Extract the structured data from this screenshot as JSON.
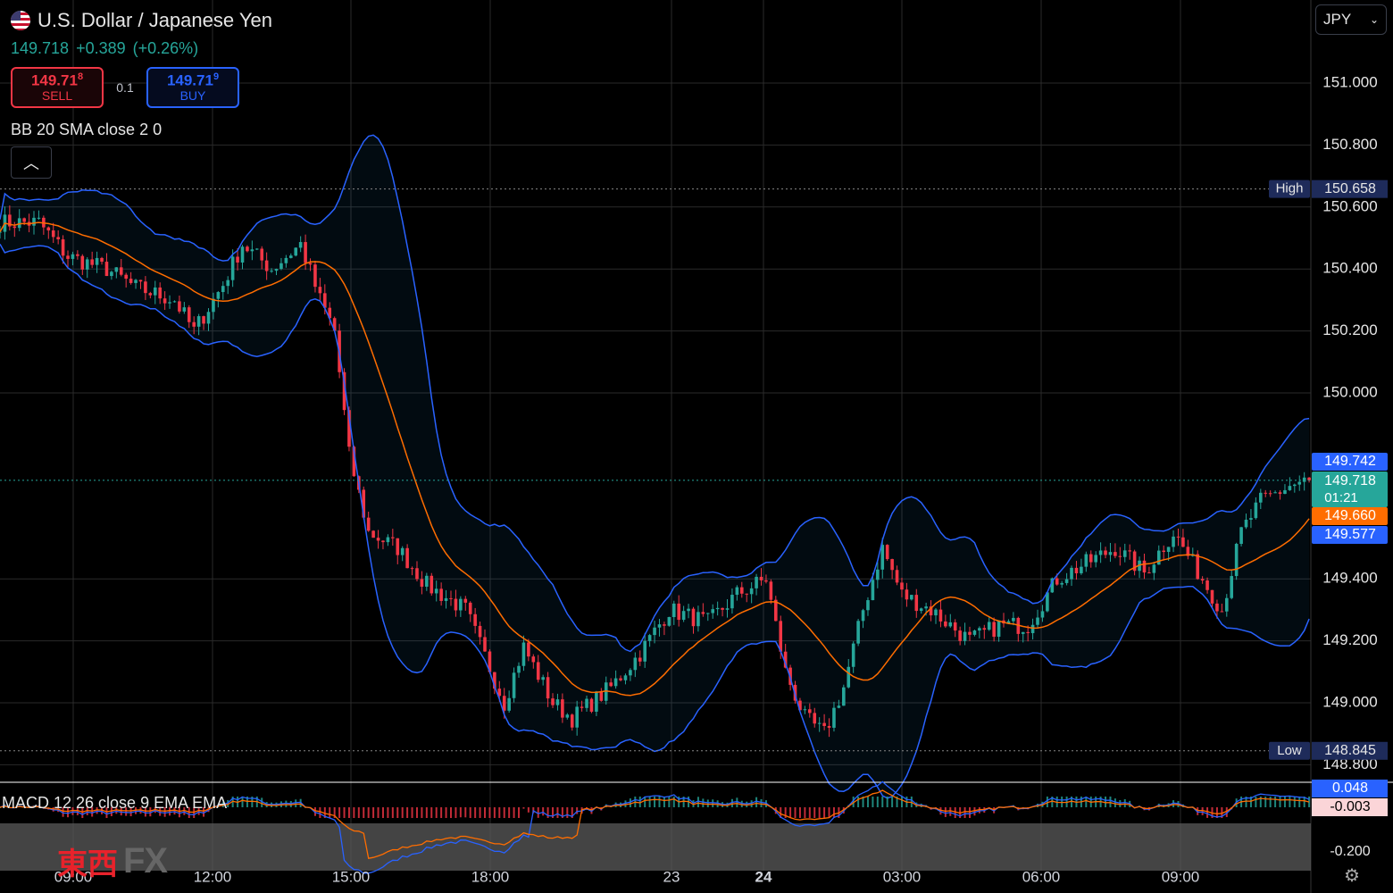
{
  "header": {
    "title": "U.S. Dollar / Japanese Yen",
    "last": "149.718",
    "change": "+0.389",
    "change_pct": "(+0.26%)",
    "sell": {
      "price_main": "149.71",
      "price_sup": "8",
      "label": "SELL"
    },
    "buy": {
      "price_main": "149.71",
      "price_sup": "9",
      "label": "BUY"
    },
    "spread": "0.1",
    "indicator": "BB 20 SMA close 2 0",
    "collapse_icon": "chevron-up-icon"
  },
  "currency_select": {
    "value": "JPY",
    "icon": "chevron-down-icon"
  },
  "macd_label": "MACD 12 26 close 9 EMA EMA",
  "logo": {
    "kanji": "東西",
    "fx": "FX"
  },
  "settings_icon": "gear-icon",
  "colors": {
    "up": "#26a69a",
    "down": "#f23645",
    "bb_band": "#2962ff",
    "bb_basis": "#ff6d00",
    "high_tag": "#1e2b5a"
  },
  "chart_data": {
    "type": "candlestick",
    "symbol": "USD/JPY",
    "y_ticks": [
      "151.000",
      "150.800",
      "150.600",
      "150.400",
      "150.200",
      "150.000",
      "149.400",
      "149.200",
      "149.000",
      "148.800"
    ],
    "x_ticks": [
      "09:00",
      "12:00",
      "15:00",
      "18:00",
      "23",
      "24",
      "03:00",
      "06:00",
      "09:00"
    ],
    "high": {
      "label": "High",
      "value": "150.658"
    },
    "low": {
      "label": "Low",
      "value": "148.845"
    },
    "price_tags": [
      {
        "value": "149.742",
        "kind": "bb-upper"
      },
      {
        "value": "149.718",
        "kind": "last",
        "countdown": "01:21"
      },
      {
        "value": "149.660",
        "kind": "bb-basis"
      },
      {
        "value": "149.577",
        "kind": "bb-lower"
      }
    ],
    "close_path": [
      [
        0,
        150.55
      ],
      [
        8,
        150.55
      ],
      [
        14,
        150.44
      ],
      [
        22,
        150.4
      ],
      [
        28,
        150.34
      ],
      [
        36,
        150.3
      ],
      [
        40,
        150.2
      ],
      [
        46,
        150.35
      ],
      [
        50,
        150.48
      ],
      [
        56,
        150.4
      ],
      [
        62,
        150.48
      ],
      [
        66,
        150.3
      ],
      [
        69,
        150.2
      ],
      [
        72,
        149.8
      ],
      [
        76,
        149.55
      ],
      [
        82,
        149.5
      ],
      [
        88,
        149.38
      ],
      [
        96,
        149.3
      ],
      [
        100,
        149.15
      ],
      [
        104,
        149.0
      ],
      [
        108,
        149.18
      ],
      [
        114,
        149.0
      ],
      [
        118,
        148.95
      ],
      [
        126,
        149.05
      ],
      [
        132,
        149.16
      ],
      [
        138,
        149.3
      ],
      [
        146,
        149.26
      ],
      [
        152,
        149.35
      ],
      [
        158,
        149.4
      ],
      [
        162,
        149.1
      ],
      [
        166,
        148.95
      ],
      [
        170,
        148.9
      ],
      [
        174,
        149.05
      ],
      [
        178,
        149.3
      ],
      [
        182,
        149.5
      ],
      [
        186,
        149.35
      ],
      [
        192,
        149.3
      ],
      [
        200,
        149.2
      ],
      [
        206,
        149.25
      ],
      [
        212,
        149.25
      ],
      [
        218,
        149.4
      ],
      [
        224,
        149.45
      ],
      [
        230,
        149.5
      ],
      [
        236,
        149.42
      ],
      [
        242,
        149.55
      ],
      [
        248,
        149.4
      ],
      [
        252,
        149.3
      ],
      [
        256,
        149.55
      ],
      [
        260,
        149.65
      ],
      [
        266,
        149.7
      ],
      [
        270,
        149.718
      ]
    ],
    "bb_width": 0.12,
    "macd": {
      "zero": 0,
      "axis_tags": [
        "0.048",
        "-0.003",
        "-0.200"
      ]
    }
  }
}
